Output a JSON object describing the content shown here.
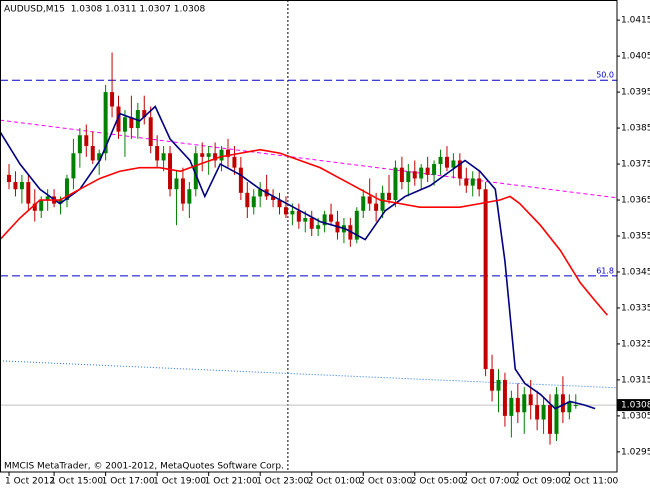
{
  "chart_data": {
    "type": "candlestick",
    "title": "AUDUSD,M15  1.0308 1.0311 1.0307 1.0308",
    "footer": "MMCIS MetaTrader, © 2001-2012, MetaQuotes Software Corp.",
    "up_color": "#008000",
    "down_color": "#c00000",
    "xlim": [
      -1.4,
      94.4
    ],
    "ylim": [
      1.02894,
      1.04206
    ],
    "yticks": [
      1.0415,
      1.0405,
      1.0395,
      1.0385,
      1.0375,
      1.0365,
      1.0355,
      1.0345,
      1.0335,
      1.0325,
      1.0315,
      1.0305,
      1.0295
    ],
    "xticks": [
      {
        "value": 0,
        "label": "1 Oct 2012"
      },
      {
        "value": 7,
        "label": "1 Oct 15:00"
      },
      {
        "value": 15,
        "label": "1 Oct 17:00"
      },
      {
        "value": 23,
        "label": "1 Oct 19:00"
      },
      {
        "value": 31,
        "label": "1 Oct 21:00"
      },
      {
        "value": 39,
        "label": "1 Oct 23:00"
      },
      {
        "value": 47,
        "label": "2 Oct 01:00"
      },
      {
        "value": 55,
        "label": "2 Oct 03:00"
      },
      {
        "value": 63,
        "label": "2 Oct 05:00"
      },
      {
        "value": 71,
        "label": "2 Oct 07:00"
      },
      {
        "value": 79,
        "label": "2 Oct 09:00"
      },
      {
        "value": 87,
        "label": "2 Oct 11:00"
      }
    ],
    "candles": [
      [
        1.0372,
        1.0375,
        1.0368,
        1.037
      ],
      [
        1.037,
        1.0373,
        1.0366,
        1.0368
      ],
      [
        1.0368,
        1.0372,
        1.0364,
        1.037
      ],
      [
        1.037,
        1.0372,
        1.0362,
        1.0364
      ],
      [
        1.0364,
        1.0368,
        1.0359,
        1.0362
      ],
      [
        1.0362,
        1.0366,
        1.036,
        1.0365
      ],
      [
        1.0365,
        1.0368,
        1.0362,
        1.0366
      ],
      [
        1.0366,
        1.0368,
        1.0363,
        1.0364
      ],
      [
        1.0364,
        1.0366,
        1.0361,
        1.0365
      ],
      [
        1.0365,
        1.0372,
        1.0363,
        1.0371
      ],
      [
        1.0371,
        1.0382,
        1.0368,
        1.0378
      ],
      [
        1.0378,
        1.0385,
        1.0374,
        1.0383
      ],
      [
        1.0383,
        1.0386,
        1.0377,
        1.038
      ],
      [
        1.038,
        1.0384,
        1.0375,
        1.0376
      ],
      [
        1.0376,
        1.0379,
        1.0372,
        1.0378
      ],
      [
        1.0378,
        1.0397,
        1.0376,
        1.0395
      ],
      [
        1.0395,
        1.0406,
        1.0388,
        1.0391
      ],
      [
        1.0391,
        1.0394,
        1.0382,
        1.0384
      ],
      [
        1.0384,
        1.039,
        1.0377,
        1.0388
      ],
      [
        1.0388,
        1.0394,
        1.0382,
        1.0385
      ],
      [
        1.0385,
        1.0392,
        1.0382,
        1.039
      ],
      [
        1.039,
        1.0394,
        1.0386,
        1.0388
      ],
      [
        1.0388,
        1.0391,
        1.0378,
        1.038
      ],
      [
        1.038,
        1.0383,
        1.0374,
        1.0376
      ],
      [
        1.0376,
        1.038,
        1.0373,
        1.0378
      ],
      [
        1.0378,
        1.038,
        1.0366,
        1.0368
      ],
      [
        1.0368,
        1.0373,
        1.0358,
        1.0371
      ],
      [
        1.0371,
        1.0374,
        1.0362,
        1.0364
      ],
      [
        1.0364,
        1.037,
        1.036,
        1.0368
      ],
      [
        1.0368,
        1.038,
        1.0366,
        1.0378
      ],
      [
        1.0378,
        1.0381,
        1.0373,
        1.0377
      ],
      [
        1.0377,
        1.038,
        1.0372,
        1.0378
      ],
      [
        1.0378,
        1.0381,
        1.0374,
        1.0376
      ],
      [
        1.0376,
        1.038,
        1.0373,
        1.0379
      ],
      [
        1.0379,
        1.0382,
        1.0374,
        1.0377
      ],
      [
        1.0377,
        1.038,
        1.0372,
        1.0374
      ],
      [
        1.0374,
        1.0377,
        1.0365,
        1.0367
      ],
      [
        1.0367,
        1.037,
        1.036,
        1.0363
      ],
      [
        1.0363,
        1.0368,
        1.0361,
        1.0366
      ],
      [
        1.0366,
        1.037,
        1.0363,
        1.0368
      ],
      [
        1.0368,
        1.0372,
        1.0365,
        1.0366
      ],
      [
        1.0366,
        1.0368,
        1.0363,
        1.0365
      ],
      [
        1.0365,
        1.0367,
        1.0361,
        1.0363
      ],
      [
        1.0363,
        1.0366,
        1.036,
        1.0361
      ],
      [
        1.0361,
        1.0364,
        1.0358,
        1.0362
      ],
      [
        1.0362,
        1.0364,
        1.0357,
        1.0359
      ],
      [
        1.0359,
        1.0362,
        1.0356,
        1.036
      ],
      [
        1.036,
        1.0362,
        1.0355,
        1.0357
      ],
      [
        1.0357,
        1.036,
        1.0355,
        1.0358
      ],
      [
        1.0358,
        1.0362,
        1.0356,
        1.0361
      ],
      [
        1.0361,
        1.0364,
        1.0358,
        1.0359
      ],
      [
        1.0359,
        1.0362,
        1.0354,
        1.0356
      ],
      [
        1.0356,
        1.036,
        1.0353,
        1.0358
      ],
      [
        1.0358,
        1.036,
        1.0352,
        1.0354
      ],
      [
        1.0354,
        1.0363,
        1.0353,
        1.0362
      ],
      [
        1.0362,
        1.0368,
        1.036,
        1.0366
      ],
      [
        1.0366,
        1.0371,
        1.0362,
        1.0364
      ],
      [
        1.0364,
        1.0367,
        1.0359,
        1.0362
      ],
      [
        1.0362,
        1.0369,
        1.036,
        1.0367
      ],
      [
        1.0367,
        1.0372,
        1.0364,
        1.0365
      ],
      [
        1.0365,
        1.0376,
        1.0363,
        1.0374
      ],
      [
        1.0374,
        1.0377,
        1.0368,
        1.037
      ],
      [
        1.037,
        1.0375,
        1.0366,
        1.0373
      ],
      [
        1.0373,
        1.0376,
        1.0369,
        1.0371
      ],
      [
        1.0371,
        1.0375,
        1.0368,
        1.0374
      ],
      [
        1.0374,
        1.0377,
        1.037,
        1.0372
      ],
      [
        1.0372,
        1.0376,
        1.0369,
        1.0375
      ],
      [
        1.0375,
        1.0379,
        1.0372,
        1.0377
      ],
      [
        1.0377,
        1.038,
        1.0373,
        1.0374
      ],
      [
        1.0374,
        1.0378,
        1.0371,
        1.0376
      ],
      [
        1.0376,
        1.0378,
        1.0369,
        1.0371
      ],
      [
        1.0371,
        1.0374,
        1.0367,
        1.0369
      ],
      [
        1.0369,
        1.0373,
        1.0366,
        1.0371
      ],
      [
        1.0371,
        1.0373,
        1.0366,
        1.0368
      ],
      [
        1.0368,
        1.037,
        1.0316,
        1.0318
      ],
      [
        1.0318,
        1.0322,
        1.0309,
        1.0312
      ],
      [
        1.0312,
        1.0318,
        1.0306,
        1.0315
      ],
      [
        1.0315,
        1.0317,
        1.0302,
        1.0305
      ],
      [
        1.0305,
        1.0312,
        1.0299,
        1.031
      ],
      [
        1.031,
        1.0314,
        1.0303,
        1.0306
      ],
      [
        1.0306,
        1.0313,
        1.03,
        1.0311
      ],
      [
        1.0311,
        1.0315,
        1.0304,
        1.0308
      ],
      [
        1.0308,
        1.0312,
        1.0301,
        1.0304
      ],
      [
        1.0304,
        1.031,
        1.03,
        1.0308
      ],
      [
        1.0308,
        1.0311,
        1.0297,
        1.03
      ],
      [
        1.03,
        1.0313,
        1.0298,
        1.0311
      ],
      [
        1.0311,
        1.0316,
        1.0303,
        1.0306
      ],
      [
        1.0306,
        1.0311,
        1.0304,
        1.0309
      ],
      [
        1.0308,
        1.0311,
        1.0307,
        1.0308
      ]
    ],
    "lines": [
      {
        "color": "#000080",
        "x": [
          -1.4,
          1.7,
          4.8,
          7.9,
          11,
          14.1,
          17.2,
          20.3,
          22.7,
          25,
          28.1,
          30.4,
          32.8,
          35.9,
          39,
          42.1,
          45.2,
          48.3,
          52.2,
          55.3,
          58.4,
          61.5,
          65.4,
          67.7,
          70.8,
          73.1,
          75.5,
          77,
          78.6,
          80.1,
          82.5,
          84.8,
          87.1,
          89.4,
          91
        ],
        "values": [
          1.0384,
          1.0375,
          1.0368,
          1.0364,
          1.0368,
          1.0376,
          1.0389,
          1.0387,
          1.0391,
          1.0382,
          1.0376,
          1.0366,
          1.0375,
          1.0372,
          1.0368,
          1.0365,
          1.0362,
          1.0359,
          1.0357,
          1.0354,
          1.0362,
          1.0366,
          1.0369,
          1.0372,
          1.0376,
          1.0373,
          1.0368,
          1.0348,
          1.0318,
          1.0314,
          1.0311,
          1.0307,
          1.0309,
          1.0308,
          1.0307
        ]
      },
      {
        "color": "#ff0000",
        "x": [
          -1.4,
          1.7,
          4.8,
          7.9,
          11,
          14.1,
          17.2,
          20.3,
          23.4,
          26.6,
          29.7,
          32.8,
          35.9,
          39,
          42.1,
          45.2,
          48.3,
          51.4,
          54.5,
          57.6,
          60.7,
          63.8,
          66.9,
          70,
          73.1,
          76.2,
          77.8,
          79.3,
          82.5,
          85.6,
          88.7,
          91,
          92.9
        ],
        "values": [
          1.0354,
          1.036,
          1.0365,
          1.0365,
          1.0368,
          1.0371,
          1.0373,
          1.0374,
          1.0374,
          1.0373,
          1.0375,
          1.0377,
          1.0378,
          1.0379,
          1.0378,
          1.0376,
          1.0374,
          1.0371,
          1.0368,
          1.0365,
          1.0364,
          1.0363,
          1.0363,
          1.0363,
          1.0364,
          1.0365,
          1.0366,
          1.0364,
          1.0358,
          1.0351,
          1.0342,
          1.0337,
          1.0333
        ]
      }
    ],
    "trendlines": [
      {
        "color": "#ff00ff",
        "x": [
          -1.4,
          94.4
        ],
        "values": [
          1.03872,
          1.03656
        ]
      },
      {
        "color": "#1e6ee6",
        "x": [
          -1.4,
          94.4
        ],
        "values": [
          1.03203,
          1.03128
        ]
      }
    ],
    "levels": [
      {
        "label": "50.0",
        "value": 1.03983,
        "color": "#0000cc"
      },
      {
        "label": "61.8",
        "value": 1.03439,
        "color": "#0000cc"
      }
    ],
    "crosshair_x": 43.3,
    "last_price": 1.0308
  }
}
